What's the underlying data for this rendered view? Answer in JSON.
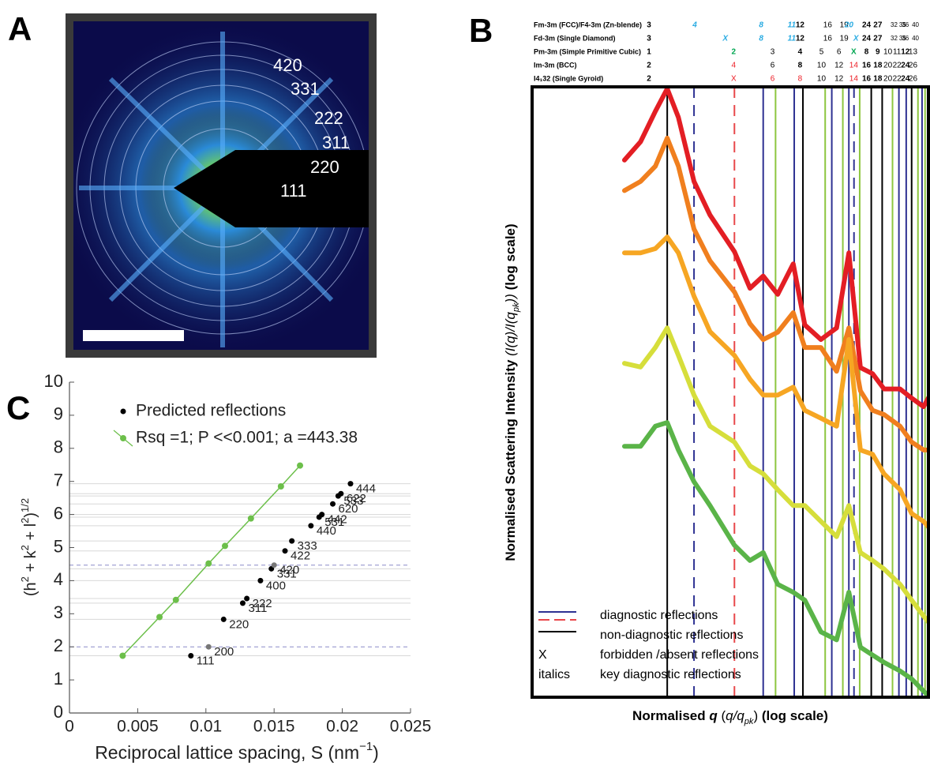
{
  "panel_labels": [
    "A",
    "B",
    "C"
  ],
  "image_a": {
    "ring_labels": [
      "420",
      "331",
      "222",
      "311",
      "220",
      "111"
    ]
  },
  "chart_data": [
    {
      "type": "scatter",
      "series": [
        {
          "name": "Predicted reflections",
          "color": "#000000",
          "x": [
            0.0089,
            0.0102,
            0.0113,
            0.0127,
            0.013,
            0.014,
            0.0148,
            0.015,
            0.0158,
            0.0163,
            0.0177,
            0.0183,
            0.0185,
            0.0193,
            0.0197,
            0.0199,
            0.0206
          ],
          "values": [
            1.73,
            2.0,
            2.83,
            3.32,
            3.46,
            4.0,
            4.36,
            4.47,
            4.9,
            5.2,
            5.66,
            5.92,
            6.0,
            6.32,
            6.56,
            6.63,
            6.93
          ],
          "point_colors": [
            "#000000",
            "#777777",
            "#000000",
            "#000000",
            "#000000",
            "#000000",
            "#000000",
            "#777777",
            "#000000",
            "#000000",
            "#000000",
            "#000000",
            "#000000",
            "#000000",
            "#000000",
            "#000000",
            "#000000"
          ],
          "point_labels": [
            "111",
            "200",
            "220",
            "311",
            "222",
            "400",
            "331",
            "420",
            "422",
            "333",
            "440",
            "531",
            "442",
            "620",
            "533",
            "622",
            "444"
          ]
        },
        {
          "name": "Rsq =1; P <<0.001; a =443.38",
          "color": "#6cbf4a",
          "x": [
            0.0039,
            0.0066,
            0.0078,
            0.0102,
            0.0114,
            0.0133,
            0.0155,
            0.0169
          ],
          "values": [
            1.73,
            2.9,
            3.42,
            4.52,
            5.05,
            5.88,
            6.85,
            7.48
          ]
        }
      ],
      "xlim": [
        0,
        0.025
      ],
      "ylim": [
        0,
        10
      ],
      "xticks": [
        0,
        0.005,
        0.01,
        0.015,
        0.02,
        0.025
      ],
      "yticks": [
        0,
        1,
        2,
        3,
        4,
        5,
        6,
        7,
        8,
        9,
        10
      ],
      "grid": true,
      "xlabel_parts": [
        {
          "text": "Reciprocal lattice spacing, S (nm"
        },
        {
          "text": "−1",
          "sup": true
        },
        {
          "text": ")"
        }
      ],
      "ylabel_parts": [
        {
          "text": "(h"
        },
        {
          "text": "2",
          "sup": true
        },
        {
          "text": " + k"
        },
        {
          "text": "2",
          "sup": true
        },
        {
          "text": " + l"
        },
        {
          "text": "2",
          "sup": true
        },
        {
          "text": ")"
        },
        {
          "text": "1/2",
          "sup": true
        }
      ]
    },
    {
      "type": "line",
      "xscale": "log",
      "x": [
        0.8,
        0.87,
        0.94,
        1.0,
        1.06,
        1.15,
        1.25,
        1.42,
        1.54,
        1.65,
        1.78,
        1.93,
        2.05,
        2.23,
        2.42,
        2.58,
        2.74,
        2.92,
        3.1,
        3.37,
        3.58,
        3.81,
        3.94
      ],
      "xlim": [
        0.49,
        3.94
      ],
      "ylim": [
        0,
        100
      ],
      "series": [
        {
          "color": "#e31e24",
          "values": [
            88,
            91,
            96,
            99.7,
            95,
            84.5,
            79,
            73,
            67,
            69,
            66,
            71,
            61,
            58.6,
            60.5,
            72.8,
            54,
            53,
            50.5,
            50.5,
            49,
            47.6,
            49.5
          ]
        },
        {
          "color": "#f07f1e",
          "values": [
            83,
            84.5,
            87,
            91.6,
            87,
            76.7,
            71.5,
            66.4,
            61.2,
            58.6,
            59.8,
            63,
            57.3,
            57.3,
            53.4,
            60.5,
            50.2,
            47,
            46.3,
            44.4,
            41.8,
            40.5,
            40.5
          ]
        },
        {
          "color": "#f6a623",
          "values": [
            72.8,
            72.8,
            73.5,
            75.4,
            72.8,
            65.7,
            59.9,
            56,
            52.1,
            49.5,
            49.5,
            50.8,
            47,
            45.7,
            44.4,
            58.6,
            40.5,
            39.8,
            36.6,
            34,
            30.1,
            28.8,
            27.6
          ]
        },
        {
          "color": "#d6de3b",
          "values": [
            54.7,
            54.1,
            57.3,
            60.5,
            56,
            49.5,
            44.4,
            41.8,
            37.9,
            36.6,
            34,
            31.4,
            31.4,
            28.8,
            26.3,
            31.4,
            23.7,
            22.4,
            21,
            18.5,
            15.9,
            13.3,
            12
          ]
        },
        {
          "color": "#5ab448",
          "values": [
            41.1,
            41.1,
            44.4,
            45,
            40.5,
            35.3,
            31.4,
            24.9,
            22.4,
            23.7,
            18.5,
            17.2,
            15.9,
            10.7,
            9.4,
            17.2,
            8.2,
            6.9,
            5.7,
            4.3,
            3,
            1,
            0
          ]
        }
      ],
      "reference_lines": [
        {
          "q": 1.0,
          "color": "#000000"
        },
        {
          "q": 1.15,
          "color": "#2e3192",
          "dash": true
        },
        {
          "q": 1.42,
          "color": "#e8474a",
          "dash": true
        },
        {
          "q": 1.65,
          "color": "#2e3192"
        },
        {
          "q": 1.76,
          "color": "#8dc63f"
        },
        {
          "q": 1.94,
          "color": "#2e3192"
        },
        {
          "q": 2.03,
          "color": "#000000"
        },
        {
          "q": 2.28,
          "color": "#8dc63f"
        },
        {
          "q": 2.36,
          "color": "#2e3192"
        },
        {
          "q": 2.5,
          "color": "#8dc63f"
        },
        {
          "q": 2.58,
          "color": "#2e3192"
        },
        {
          "q": 2.65,
          "color": "#2e3192",
          "dash": true
        },
        {
          "q": 2.73,
          "color": "#8dc63f"
        },
        {
          "q": 2.9,
          "color": "#000000"
        },
        {
          "q": 3.07,
          "color": "#000000"
        },
        {
          "q": 3.24,
          "color": "#8dc63f"
        },
        {
          "q": 3.35,
          "color": "#2e3192"
        },
        {
          "q": 3.48,
          "color": "#2e3192"
        },
        {
          "q": 3.58,
          "color": "#000000"
        },
        {
          "q": 3.7,
          "color": "#8dc63f"
        },
        {
          "q": 3.78,
          "color": "#2e3192"
        },
        {
          "q": 3.84,
          "color": "#8dc63f"
        }
      ],
      "table": {
        "rows": [
          {
            "name": "Fm-3m (FCC)/F4-3m (Zn-blende)",
            "cells": [
              {
                "text": "3",
                "style": "bold"
              },
              {
                "text": "4",
                "style": "key"
              },
              {
                "text": "8",
                "style": "key"
              },
              {
                "text": "11",
                "style": "key"
              },
              {
                "text": "12",
                "style": "bold"
              },
              {
                "text": "16",
                "style": "normal"
              },
              {
                "text": "19",
                "style": "normal"
              },
              {
                "text": "20",
                "style": "key"
              },
              {
                "text": "24",
                "style": "bold"
              },
              {
                "text": "27",
                "style": "bold"
              },
              {
                "text": "32",
                "style": "normal"
              },
              {
                "text": "35",
                "style": "normal"
              },
              {
                "text": "36",
                "style": "normal"
              },
              {
                "text": "40",
                "style": "normal"
              }
            ]
          },
          {
            "name": "Fd-3m (Single Diamond)",
            "cells": [
              {
                "text": "3",
                "style": "bold"
              },
              {
                "text": "X",
                "style": "key"
              },
              {
                "text": "8",
                "style": "key"
              },
              {
                "text": "11",
                "style": "key"
              },
              {
                "text": "12",
                "style": "bold"
              },
              {
                "text": "16",
                "style": "normal"
              },
              {
                "text": "19",
                "style": "normal"
              },
              {
                "text": "X",
                "style": "key"
              },
              {
                "text": "24",
                "style": "bold"
              },
              {
                "text": "27",
                "style": "bold"
              },
              {
                "text": "32",
                "style": "normal"
              },
              {
                "text": "35",
                "style": "normal"
              },
              {
                "text": "36",
                "style": "normal"
              },
              {
                "text": "40",
                "style": "normal"
              }
            ]
          },
          {
            "name": "Pm-3m (Simple Primitive Cubic)",
            "cells": [
              {
                "text": "1",
                "style": "bold"
              },
              {
                "text": "2",
                "style": "green"
              },
              {
                "text": "3",
                "style": "normal"
              },
              {
                "text": "4",
                "style": "bold"
              },
              {
                "text": "5",
                "style": "normal"
              },
              {
                "text": "6",
                "style": "normal"
              },
              {
                "text": "X",
                "style": "green"
              },
              {
                "text": "8",
                "style": "bold"
              },
              {
                "text": "9",
                "style": "bold"
              },
              {
                "text": "10",
                "style": "normal"
              },
              {
                "text": "11",
                "style": "normal"
              },
              {
                "text": "12",
                "style": "bold"
              },
              {
                "text": "13",
                "style": "normal"
              }
            ]
          },
          {
            "name": "Im-3m (BCC)",
            "cells": [
              {
                "text": "2",
                "style": "bold"
              },
              {
                "text": "4",
                "style": "red"
              },
              {
                "text": "6",
                "style": "normal"
              },
              {
                "text": "8",
                "style": "bold"
              },
              {
                "text": "10",
                "style": "normal"
              },
              {
                "text": "12",
                "style": "normal"
              },
              {
                "text": "14",
                "style": "red"
              },
              {
                "text": "16",
                "style": "bold"
              },
              {
                "text": "18",
                "style": "bold"
              },
              {
                "text": "20",
                "style": "normal"
              },
              {
                "text": "22",
                "style": "normal"
              },
              {
                "text": "24",
                "style": "bold"
              },
              {
                "text": "26",
                "style": "normal"
              }
            ]
          },
          {
            "name": "I4₁32 (Single Gyroid)",
            "cells": [
              {
                "text": "2",
                "style": "bold"
              },
              {
                "text": "X",
                "style": "red"
              },
              {
                "text": "6",
                "style": "red"
              },
              {
                "text": "8",
                "style": "red"
              },
              {
                "text": "10",
                "style": "normal"
              },
              {
                "text": "12",
                "style": "normal"
              },
              {
                "text": "14",
                "style": "red"
              },
              {
                "text": "16",
                "style": "bold"
              },
              {
                "text": "18",
                "style": "bold"
              },
              {
                "text": "20",
                "style": "normal"
              },
              {
                "text": "22",
                "style": "normal"
              },
              {
                "text": "24",
                "style": "bold"
              },
              {
                "text": "26",
                "style": "normal"
              }
            ]
          }
        ]
      },
      "legend": [
        {
          "colors": [
            "#2e3192",
            "#e8474a"
          ],
          "text": "diagnostic reflections"
        },
        {
          "colors": [
            "#000000"
          ],
          "text": "non-diagnostic reflections"
        },
        {
          "symbol": "X",
          "text": "forbidden /absent reflections"
        },
        {
          "symbol": "italics",
          "text": "key diagnostic reflections"
        }
      ],
      "xlabel_parts": [
        {
          "text": "Normalised "
        },
        {
          "text": "q",
          "italic": true
        },
        {
          "text": " (",
          "light": true
        },
        {
          "text": "q/q",
          "italic": true,
          "light": true
        },
        {
          "text": "pk",
          "sub": true,
          "italic": true,
          "light": true
        },
        {
          "text": ")",
          "light": true
        },
        {
          "text": " (log scale)"
        }
      ],
      "ylabel_parts": [
        {
          "text": "Normalised Scattering Intensity "
        },
        {
          "text": "(I(q)/I(q",
          "italic": true,
          "light": true
        },
        {
          "text": "pk",
          "sub": true,
          "italic": true,
          "light": true
        },
        {
          "text": "))",
          "italic": true,
          "light": true
        },
        {
          "text": " (log scale)"
        }
      ]
    }
  ]
}
